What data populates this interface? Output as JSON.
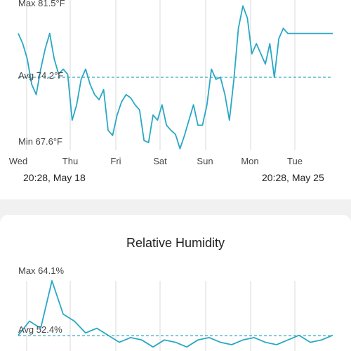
{
  "colors": {
    "series": "#29a8c4",
    "avg_line": "#29a8c4",
    "grid": "#d9d9d9",
    "background": "#f1f1f1",
    "card": "#ffffff"
  },
  "temperature": {
    "range_start": "20:28,  May 18",
    "range_end": "20:28,  May 25"
  },
  "humidity": {
    "title": "Relative Humidity"
  },
  "chart_data": [
    {
      "type": "line",
      "title": "",
      "labels": {
        "max": "Max 81.5°F",
        "avg": "Avg 74.2°F",
        "min": "Min 67.6°F"
      },
      "max": 81.5,
      "avg": 74.2,
      "min": 67.6,
      "x_ticks": [
        "Wed",
        "Thu",
        "Fri",
        "Sat",
        "Sun",
        "Mon",
        "Tue"
      ],
      "grid": "vertical",
      "series": [
        {
          "x": [
            0,
            0.2,
            0.4,
            0.6,
            0.8,
            1,
            1.2,
            1.4,
            1.6,
            1.8,
            2,
            2.2,
            2.4,
            2.6,
            2.8,
            3,
            3.2,
            3.4,
            3.6,
            3.8,
            4,
            4.2,
            4.4,
            4.6,
            4.8,
            5,
            5.2,
            5.4,
            5.6,
            5.8,
            6,
            6.2,
            6.4,
            6.6,
            6.8,
            7,
            7.2,
            7.4,
            7.6,
            7.8,
            8,
            8.2,
            8.4,
            8.6,
            8.8,
            9,
            9.2,
            9.4,
            9.6,
            9.8,
            10,
            10.2,
            10.4,
            10.6,
            10.8,
            11,
            11.2,
            11.4,
            11.6,
            11.8,
            12,
            12.2,
            12.4,
            12.6,
            12.8,
            13,
            13.2,
            13.4,
            13.6,
            13.8,
            14
          ],
          "y": [
            78.5,
            77.5,
            76,
            73.5,
            72.5,
            75,
            77,
            78.5,
            76,
            74.5,
            75,
            74.5,
            70,
            71.5,
            74,
            75,
            73.5,
            72.5,
            72,
            73,
            69,
            68.5,
            70.5,
            71.8,
            72.5,
            72.2,
            71.5,
            71,
            68,
            67.8,
            70.5,
            70,
            71.5,
            69.5,
            69,
            68.6,
            67.2,
            68.5,
            70,
            71.5,
            69.5,
            69.5,
            71.5,
            75,
            74,
            74.2,
            72.5,
            70,
            74,
            79,
            81.2,
            80,
            76.5,
            77.5,
            76.5,
            75.5,
            77.5,
            74.2,
            78,
            79,
            78.5,
            78.5,
            78.5,
            78.5,
            78.5,
            78.5,
            78.5,
            78.5,
            78.5,
            78.5,
            78.5
          ]
        }
      ]
    },
    {
      "type": "line",
      "title": "Relative Humidity",
      "labels": {
        "max": "Max 64.1%",
        "avg": "Avg 52.4%"
      },
      "max": 64.1,
      "avg": 52.4,
      "grid": "vertical",
      "series": [
        {
          "x": [
            0,
            0.5,
            1,
            1.5,
            2,
            2.5,
            3,
            3.5,
            4,
            4.5,
            5,
            5.5,
            6,
            6.5,
            7,
            7.5,
            8,
            8.5,
            9,
            9.5,
            10,
            10.5,
            11,
            11.5,
            12,
            12.5,
            13,
            13.5,
            14
          ],
          "y": [
            52.5,
            55.5,
            54,
            64.1,
            57,
            55.5,
            53,
            54,
            52.5,
            51,
            52,
            51.5,
            50,
            51.5,
            51,
            50,
            51.5,
            52,
            51,
            50.5,
            51.5,
            52,
            51,
            50.5,
            51.5,
            52.5,
            51,
            51.5,
            52.5
          ]
        }
      ]
    }
  ]
}
